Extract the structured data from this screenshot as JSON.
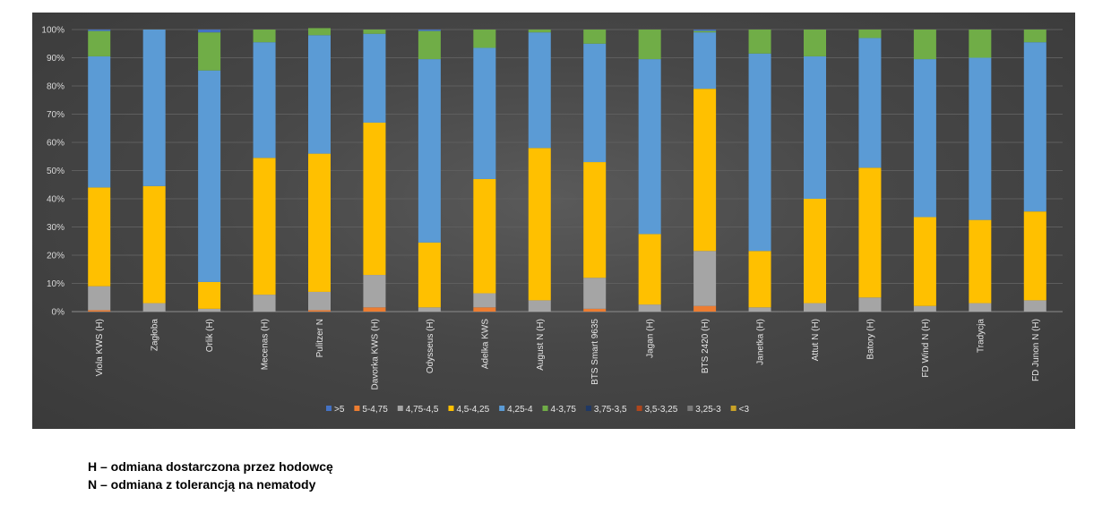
{
  "chart_data": {
    "type": "bar",
    "stacked": true,
    "percent_stacked": true,
    "ylim": [
      0,
      100
    ],
    "y_ticks": [
      "0%",
      "10%",
      "20%",
      "30%",
      "40%",
      "50%",
      "60%",
      "70%",
      "80%",
      "90%",
      "100%"
    ],
    "grid": true,
    "legend_position": "bottom",
    "categories": [
      "Viola KWS (H)",
      "Zagłoba",
      "Orlik (H)",
      "Mecenas (H)",
      "Pulitzer  N",
      "Davorka KWS (H)",
      "Odysseus (H)",
      "Adelka KWS",
      "August N (H)",
      "BTS Smart 9635",
      "Jagan (H)",
      "BTS 2420 (H)",
      "Janetka (H)",
      "Attut  N (H)",
      "Batory (H)",
      "FD Wind  N (H)",
      "Tradycja",
      "FD Junon  N (H)"
    ],
    "series": [
      {
        "name": "<3",
        "color": "#c9a227",
        "values": [
          0,
          0,
          0,
          0,
          0,
          0,
          0,
          0,
          0,
          0,
          0,
          0,
          0,
          0,
          0,
          0,
          0,
          0
        ]
      },
      {
        "name": "3,25-3",
        "color": "#7a7a7a",
        "values": [
          0,
          0,
          0,
          0,
          0,
          0,
          0,
          0,
          0,
          0,
          0,
          0,
          0,
          0,
          0,
          0,
          0,
          0
        ]
      },
      {
        "name": "3,5-3,25",
        "color": "#b0461c",
        "values": [
          0,
          0,
          0,
          0,
          0,
          0,
          0,
          0,
          0,
          0,
          0,
          0,
          0,
          0,
          0,
          0,
          0,
          0
        ]
      },
      {
        "name": "3,75-3,5",
        "color": "#1f3864",
        "values": [
          0,
          0,
          0,
          0,
          0,
          0,
          0,
          0,
          0,
          0,
          0,
          0,
          0,
          0,
          0,
          0,
          0,
          0
        ]
      },
      {
        "name": "5-4,75",
        "color": "#ed7d31",
        "values": [
          0.5,
          0,
          0,
          0,
          0.5,
          1.5,
          0,
          1.5,
          0,
          1,
          0,
          2,
          0,
          0,
          0,
          0,
          0,
          0
        ]
      },
      {
        "name": "4,75-4,5",
        "color": "#a5a5a5",
        "values": [
          8.5,
          3,
          1,
          6,
          6.5,
          11.5,
          1.5,
          5,
          4,
          11,
          2.5,
          19.5,
          1.5,
          3,
          5,
          2,
          3,
          4
        ]
      },
      {
        "name": "4,5-4,25",
        "color": "#ffc000",
        "values": [
          35,
          41.5,
          9.5,
          48.5,
          49,
          54,
          23,
          40.5,
          54,
          41,
          25,
          57.5,
          20,
          37,
          46,
          31.5,
          29.5,
          31.5
        ]
      },
      {
        "name": "4,25-4",
        "color": "#5b9bd5",
        "values": [
          46.5,
          55.5,
          75,
          41,
          42,
          31.5,
          65,
          46.5,
          41,
          42,
          62,
          20,
          70,
          50.5,
          46,
          56,
          57.5,
          60
        ]
      },
      {
        "name": "4-3,75",
        "color": "#70ad47",
        "values": [
          9,
          0,
          13.5,
          4.5,
          2.5,
          1.5,
          10,
          6.5,
          1,
          5,
          10.5,
          0.5,
          8.5,
          9.5,
          3,
          10.5,
          10,
          4.5
        ]
      },
      {
        "name": ">5",
        "color": "#4472c4",
        "values": [
          0.5,
          0,
          1,
          0,
          0,
          0,
          0.5,
          0,
          0,
          0,
          0,
          0.5,
          0,
          0,
          0,
          0,
          0,
          0
        ]
      }
    ],
    "legend_order": [
      ">5",
      "5-4,75",
      "4,75-4,5",
      "4,5-4,25",
      "4,25-4",
      "4-3,75",
      "3,75-3,5",
      "3,5-3,25",
      "3,25-3",
      "<3"
    ]
  },
  "notes": {
    "line1": "H – odmiana dostarczona przez hodowcę",
    "line2": "N – odmiana z tolerancją na nematody"
  }
}
